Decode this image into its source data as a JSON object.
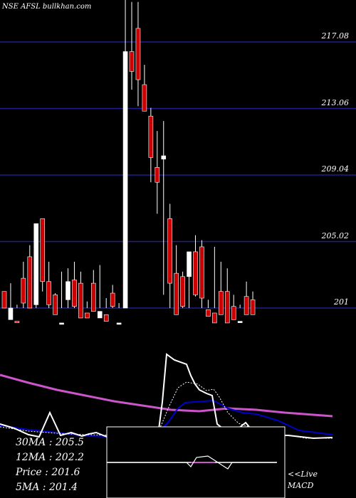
{
  "site": "NSE AFSL bullkhan.com",
  "colors": {
    "background": "#000000",
    "grid": "#1f1f8f",
    "up_candle": "#ffffff",
    "down_candle": "#cc0000",
    "ma_slow": "#cc55cc",
    "ma_mid": "#0000cc",
    "price_line": "#ffffff",
    "macd_line": "#cc55cc"
  },
  "labels": {
    "ma30": "30MA : 205.5",
    "ma12": "12MA : 202.2",
    "price": "Price   : 201.6",
    "ma5": "5MA : 201.4",
    "live": "<<Live",
    "macd": "MACD"
  },
  "chart_data": {
    "type": "candlestick",
    "title": "NSE AFSL",
    "ylim": [
      200.0,
      219.0
    ],
    "y_levels": [
      "217.08",
      "213.06",
      "209.04",
      "205.02",
      "201"
    ],
    "candles": [
      {
        "o": 201.0,
        "h": 202.0,
        "l": 200.0,
        "c": 202.0,
        "up": false
      },
      {
        "o": 201.0,
        "h": 202.5,
        "l": 200.0,
        "c": 200.3,
        "up": true
      },
      {
        "o": 200.2,
        "h": 201.2,
        "l": 200.0,
        "c": 200.2,
        "up": false
      },
      {
        "o": 202.8,
        "h": 203.8,
        "l": 200.0,
        "c": 201.3,
        "up": false
      },
      {
        "o": 204.1,
        "h": 204.8,
        "l": 200.0,
        "c": 201.0,
        "up": false
      },
      {
        "o": 201.2,
        "h": 206.1,
        "l": 200.0,
        "c": 206.1,
        "up": true
      },
      {
        "o": 206.4,
        "h": 206.4,
        "l": 202.0,
        "c": 202.6,
        "up": false
      },
      {
        "o": 202.6,
        "h": 203.8,
        "l": 200.0,
        "c": 201.2,
        "up": false
      },
      {
        "o": 200.6,
        "h": 201.9,
        "l": 200.0,
        "c": 201.8,
        "up": false
      },
      {
        "o": 200.1,
        "h": 203.2,
        "l": 200.0,
        "c": 200.1,
        "up": true
      },
      {
        "o": 201.5,
        "h": 203.4,
        "l": 200.0,
        "c": 202.6,
        "up": true
      },
      {
        "o": 202.7,
        "h": 203.8,
        "l": 200.0,
        "c": 201.1,
        "up": false
      },
      {
        "o": 202.5,
        "h": 203.2,
        "l": 200.0,
        "c": 200.4,
        "up": false
      },
      {
        "o": 200.7,
        "h": 201.4,
        "l": 200.0,
        "c": 200.4,
        "up": false
      },
      {
        "o": 202.5,
        "h": 203.3,
        "l": 200.0,
        "c": 200.8,
        "up": false
      },
      {
        "o": 200.4,
        "h": 203.6,
        "l": 200.0,
        "c": 200.8,
        "up": true
      },
      {
        "o": 200.6,
        "h": 201.6,
        "l": 200.0,
        "c": 200.2,
        "up": false
      },
      {
        "o": 201.1,
        "h": 202.4,
        "l": 200.0,
        "c": 201.9,
        "up": false
      },
      {
        "o": 200.1,
        "h": 201.3,
        "l": 200.0,
        "c": 200.1,
        "up": true
      },
      {
        "o": 201.0,
        "h": 220.0,
        "l": 200.0,
        "c": 216.5,
        "up": true
      },
      {
        "o": 216.5,
        "h": 219.5,
        "l": 214.2,
        "c": 215.3,
        "up": false
      },
      {
        "o": 217.9,
        "h": 219.5,
        "l": 213.2,
        "c": 214.8,
        "up": false
      },
      {
        "o": 214.5,
        "h": 215.7,
        "l": 213.0,
        "c": 212.9,
        "up": false
      },
      {
        "o": 212.6,
        "h": 213.1,
        "l": 208.6,
        "c": 210.1,
        "up": false
      },
      {
        "o": 209.5,
        "h": 211.7,
        "l": 206.7,
        "c": 208.6,
        "up": false
      },
      {
        "o": 210.2,
        "h": 212.3,
        "l": 201.8,
        "c": 210.0,
        "up": true
      },
      {
        "o": 206.4,
        "h": 207.3,
        "l": 200.0,
        "c": 202.5,
        "up": false
      },
      {
        "o": 203.1,
        "h": 204.8,
        "l": 200.0,
        "c": 200.6,
        "up": false
      },
      {
        "o": 202.9,
        "h": 203.2,
        "l": 200.0,
        "c": 201.1,
        "up": false
      },
      {
        "o": 202.9,
        "h": 204.4,
        "l": 200.0,
        "c": 204.4,
        "up": true
      },
      {
        "o": 204.4,
        "h": 205.4,
        "l": 201.7,
        "c": 201.8,
        "up": false
      },
      {
        "o": 204.7,
        "h": 205.1,
        "l": 200.0,
        "c": 201.6,
        "up": false
      },
      {
        "o": 200.9,
        "h": 201.5,
        "l": 200.0,
        "c": 200.5,
        "up": false
      },
      {
        "o": 200.7,
        "h": 204.7,
        "l": 200.0,
        "c": 200.1,
        "up": false
      },
      {
        "o": 202.0,
        "h": 203.8,
        "l": 200.0,
        "c": 200.6,
        "up": false
      },
      {
        "o": 202.0,
        "h": 203.4,
        "l": 200.0,
        "c": 200.1,
        "up": false
      },
      {
        "o": 201.1,
        "h": 201.8,
        "l": 200.0,
        "c": 200.3,
        "up": false
      },
      {
        "o": 200.2,
        "h": 201.2,
        "l": 200.0,
        "c": 200.2,
        "up": true
      },
      {
        "o": 201.7,
        "h": 202.6,
        "l": 200.0,
        "c": 200.6,
        "up": false
      },
      {
        "o": 201.5,
        "h": 202.0,
        "l": 200.0,
        "c": 200.6,
        "up": false
      }
    ],
    "indicator": {
      "ma_slow_line": [
        [
          0,
          527
        ],
        [
          40,
          538
        ],
        [
          80,
          548
        ],
        [
          120,
          556
        ],
        [
          160,
          564
        ],
        [
          200,
          570
        ],
        [
          240,
          576
        ],
        [
          280,
          578
        ],
        [
          320,
          574
        ],
        [
          360,
          576
        ],
        [
          400,
          580
        ],
        [
          440,
          583
        ],
        [
          467,
          585
        ]
      ],
      "ma_mid_line": [
        [
          0,
          598
        ],
        [
          40,
          604
        ],
        [
          80,
          608
        ],
        [
          120,
          613
        ],
        [
          160,
          614
        ],
        [
          200,
          614
        ],
        [
          220,
          610
        ],
        [
          236,
          594
        ],
        [
          250,
          574
        ],
        [
          260,
          566
        ],
        [
          300,
          563
        ],
        [
          320,
          574
        ],
        [
          340,
          580
        ],
        [
          360,
          582
        ],
        [
          390,
          591
        ],
        [
          420,
          605
        ],
        [
          467,
          611
        ]
      ],
      "price_line": [
        [
          0,
          596
        ],
        [
          20,
          602
        ],
        [
          40,
          611
        ],
        [
          55,
          614
        ],
        [
          70,
          580
        ],
        [
          85,
          612
        ],
        [
          100,
          608
        ],
        [
          115,
          613
        ],
        [
          125,
          610
        ],
        [
          135,
          608
        ],
        [
          150,
          614
        ],
        [
          170,
          612
        ],
        [
          190,
          612
        ],
        [
          210,
          613
        ],
        [
          222,
          611
        ],
        [
          228,
          565
        ],
        [
          234,
          498
        ],
        [
          245,
          506
        ],
        [
          262,
          512
        ],
        [
          268,
          528
        ],
        [
          274,
          540
        ],
        [
          280,
          548
        ],
        [
          290,
          553
        ],
        [
          298,
          556
        ],
        [
          305,
          596
        ],
        [
          315,
          604
        ],
        [
          325,
          610
        ],
        [
          345,
          594
        ],
        [
          355,
          606
        ],
        [
          385,
          612
        ],
        [
          405,
          612
        ],
        [
          440,
          616
        ],
        [
          467,
          615
        ]
      ],
      "price_dotted": [
        [
          0,
          600
        ],
        [
          40,
          606
        ],
        [
          80,
          609
        ],
        [
          120,
          611
        ],
        [
          160,
          612
        ],
        [
          200,
          611
        ],
        [
          222,
          608
        ],
        [
          238,
          570
        ],
        [
          250,
          545
        ],
        [
          262,
          537
        ],
        [
          278,
          540
        ],
        [
          290,
          549
        ],
        [
          300,
          547
        ],
        [
          308,
          558
        ],
        [
          320,
          580
        ],
        [
          335,
          595
        ],
        [
          350,
          600
        ],
        [
          380,
          608
        ],
        [
          430,
          616
        ],
        [
          467,
          616
        ]
      ]
    },
    "macd": {
      "baseline": 650,
      "line": [
        [
          150,
          650
        ],
        [
          240,
          650
        ],
        [
          262,
          650
        ],
        [
          268,
          656
        ],
        [
          276,
          643
        ],
        [
          292,
          641
        ],
        [
          306,
          650
        ],
        [
          312,
          654
        ],
        [
          320,
          659
        ],
        [
          326,
          650
        ],
        [
          389,
          650
        ]
      ]
    }
  }
}
